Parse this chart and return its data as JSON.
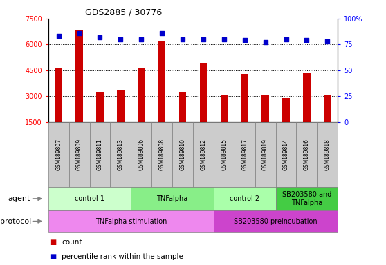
{
  "title": "GDS2885 / 30776",
  "samples": [
    "GSM189807",
    "GSM189809",
    "GSM189811",
    "GSM189813",
    "GSM189806",
    "GSM189808",
    "GSM189810",
    "GSM189812",
    "GSM189815",
    "GSM189817",
    "GSM189819",
    "GSM189814",
    "GSM189816",
    "GSM189818"
  ],
  "counts": [
    4650,
    6800,
    3250,
    3350,
    4600,
    6200,
    3200,
    4950,
    3050,
    4300,
    3100,
    2900,
    4350,
    3050
  ],
  "percentile_ranks": [
    83,
    86,
    82,
    80,
    80,
    86,
    80,
    80,
    80,
    79,
    77,
    80,
    79,
    78
  ],
  "ylim_left": [
    1500,
    7500
  ],
  "ylim_right": [
    0,
    100
  ],
  "yticks_left": [
    1500,
    3000,
    4500,
    6000,
    7500
  ],
  "yticks_right": [
    0,
    25,
    50,
    75,
    100
  ],
  "agent_groups": [
    {
      "label": "control 1",
      "start": 0,
      "end": 4,
      "color": "#ccffcc"
    },
    {
      "label": "TNFalpha",
      "start": 4,
      "end": 8,
      "color": "#88ee88"
    },
    {
      "label": "control 2",
      "start": 8,
      "end": 11,
      "color": "#aaffaa"
    },
    {
      "label": "SB203580 and\nTNFalpha",
      "start": 11,
      "end": 14,
      "color": "#44cc44"
    }
  ],
  "protocol_groups": [
    {
      "label": "TNFalpha stimulation",
      "start": 0,
      "end": 8,
      "color": "#ee88ee"
    },
    {
      "label": "SB203580 preincubation",
      "start": 8,
      "end": 14,
      "color": "#cc44cc"
    }
  ],
  "bar_color": "#cc0000",
  "dot_color": "#0000cc",
  "label_bg_color": "#cccccc",
  "agent_label_color": "#000000",
  "protocol_label_color": "#000000"
}
